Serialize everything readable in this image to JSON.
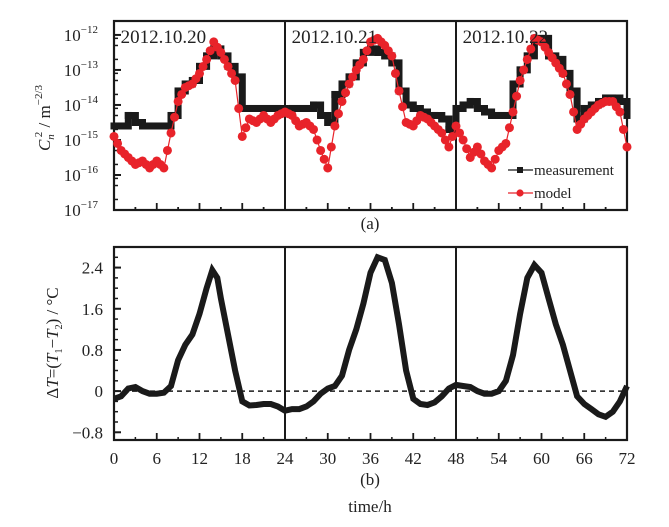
{
  "chart_data": [
    {
      "type": "scatter",
      "panel_label": "(a)",
      "yscale": "log",
      "ylabel": "C_n^2 / m^-2/3",
      "ylabel_parts": {
        "symbol": "C",
        "sub": "n",
        "sup": "2",
        "unit": " / m",
        "unit_sup": "−2/3"
      },
      "ylim": [
        1e-17,
        2.5e-12
      ],
      "xlim": [
        0,
        72
      ],
      "ytick_exponents": [
        -12,
        -13,
        -14,
        -15,
        -16,
        -17
      ],
      "ytick_base": "10",
      "day_dividers": [
        24,
        48
      ],
      "annotations": [
        {
          "text": "2012.10.20",
          "x": 0.5
        },
        {
          "text": "2012.10.21",
          "x": 24.5
        },
        {
          "text": "2012.10.22",
          "x": 48.5
        }
      ],
      "legend": {
        "position": "bottom-right",
        "entries": [
          "measurement",
          "model"
        ]
      },
      "x": [
        0,
        1,
        2,
        3,
        4,
        5,
        6,
        7,
        8,
        9,
        10,
        11,
        12,
        13,
        14,
        15,
        16,
        17,
        18,
        19,
        20,
        21,
        22,
        23,
        24,
        25,
        26,
        27,
        28,
        29,
        30,
        31,
        32,
        33,
        34,
        35,
        36,
        37,
        38,
        39,
        40,
        41,
        42,
        43,
        44,
        45,
        46,
        47,
        48,
        49,
        50,
        51,
        52,
        53,
        54,
        55,
        56,
        57,
        58,
        59,
        60,
        61,
        62,
        63,
        64,
        65,
        66,
        67,
        68,
        69,
        70,
        71,
        72
      ],
      "series": [
        {
          "name": "measurement",
          "color": "#1a1a1a",
          "log10_values": [
            -14.6,
            -14.6,
            -14.3,
            -14.5,
            -14.6,
            -14.6,
            -14.6,
            -14.6,
            -14.3,
            -13.6,
            -13.4,
            -13.3,
            -12.9,
            -12.6,
            -12.4,
            -12.6,
            -12.9,
            -13.2,
            -14.1,
            -14.1,
            -14.1,
            -14.1,
            -14.1,
            -14.1,
            -14.2,
            -14.1,
            -14.1,
            -14.1,
            -14.0,
            -14.3,
            -14.5,
            -13.7,
            -13.4,
            -13.2,
            -12.8,
            -12.5,
            -12.4,
            -12.5,
            -12.6,
            -12.8,
            -13.6,
            -14.0,
            -14.1,
            -14.2,
            -14.3,
            -14.3,
            -14.4,
            -14.7,
            -14.1,
            -14.0,
            -13.9,
            -14.1,
            -14.2,
            -14.3,
            -14.3,
            -14.3,
            -13.4,
            -13.0,
            -12.6,
            -12.1,
            -12.1,
            -12.6,
            -12.7,
            -13.1,
            -13.6,
            -14.4,
            -14.1,
            -14.0,
            -13.9,
            -13.8,
            -13.8,
            -13.9,
            -14.3
          ]
        },
        {
          "name": "model",
          "color": "#e8232a",
          "log10_values": [
            -14.9,
            -15.3,
            -15.5,
            -15.7,
            -15.6,
            -15.8,
            -15.6,
            -15.8,
            -14.8,
            -13.9,
            -13.5,
            -13.4,
            -13.1,
            -12.7,
            -12.2,
            -12.5,
            -12.9,
            -13.3,
            -14.9,
            -14.4,
            -14.5,
            -14.3,
            -14.5,
            -14.3,
            -14.2,
            -14.3,
            -14.6,
            -14.5,
            -14.7,
            -15.3,
            -15.8,
            -14.6,
            -13.9,
            -13.4,
            -13.0,
            -12.7,
            -12.2,
            -12.1,
            -12.3,
            -12.6,
            -13.6,
            -14.5,
            -14.6,
            -14.3,
            -14.4,
            -14.6,
            -14.8,
            -15.2,
            -14.6,
            -15.0,
            -15.5,
            -15.2,
            -15.6,
            -15.8,
            -15.3,
            -15.1,
            -14.2,
            -13.3,
            -12.7,
            -12.1,
            -12.2,
            -12.5,
            -12.8,
            -13.1,
            -13.7,
            -14.7,
            -14.4,
            -14.2,
            -14.0,
            -13.9,
            -13.9,
            -14.2,
            -15.2
          ]
        }
      ]
    },
    {
      "type": "line",
      "panel_label": "(b)",
      "xlabel": "time/h",
      "ylabel": "ΔT=(T1−T2) / °C",
      "ylabel_parts": {
        "delta": "Δ",
        "T": "T",
        "eq": "=(",
        "T1": "T",
        "s1": "1",
        "minus": "−",
        "T2": "T",
        "s2": "2",
        "unit": ") / °C"
      },
      "xlim": [
        0,
        72
      ],
      "ylim": [
        -0.95,
        2.8
      ],
      "xticks": [
        0,
        6,
        12,
        18,
        24,
        30,
        36,
        42,
        48,
        54,
        60,
        66,
        72
      ],
      "yticks": [
        2.4,
        1.6,
        0.8,
        0,
        -0.8
      ],
      "ytick_labels": [
        "2.4",
        "1.6",
        "0.8",
        "0",
        "−0.8"
      ],
      "reference_line": {
        "y": 0,
        "style": "dashed"
      },
      "day_dividers": [
        24,
        48
      ],
      "x": [
        0,
        1,
        2,
        3,
        4,
        5,
        6,
        7,
        8,
        9,
        10,
        11,
        12,
        13,
        13.8,
        14.5,
        15,
        16,
        17,
        18,
        19,
        20,
        21,
        22,
        23,
        24,
        25,
        26,
        27,
        28,
        29,
        30,
        31,
        32,
        33,
        34,
        35,
        36,
        37,
        38,
        39,
        40,
        41,
        42,
        43,
        44,
        45,
        46,
        47,
        48,
        49,
        50,
        51,
        52,
        53,
        54,
        55,
        56,
        57,
        58,
        59,
        60,
        61,
        62,
        63,
        64,
        65,
        66,
        67,
        68,
        69,
        70,
        71,
        72
      ],
      "series": [
        {
          "name": "ΔT",
          "color": "#1a1a1a",
          "values": [
            -0.15,
            -0.1,
            0.05,
            0.08,
            0.0,
            -0.05,
            -0.05,
            -0.03,
            0.1,
            0.6,
            0.9,
            1.1,
            1.5,
            2.0,
            2.35,
            2.2,
            1.8,
            1.1,
            0.4,
            -0.2,
            -0.28,
            -0.27,
            -0.25,
            -0.25,
            -0.3,
            -0.38,
            -0.35,
            -0.35,
            -0.3,
            -0.2,
            -0.05,
            0.05,
            0.1,
            0.3,
            0.8,
            1.2,
            1.7,
            2.3,
            2.6,
            2.55,
            2.1,
            1.3,
            0.4,
            -0.15,
            -0.25,
            -0.27,
            -0.22,
            -0.1,
            0.05,
            0.12,
            0.1,
            0.08,
            0.0,
            -0.05,
            -0.05,
            0.0,
            0.2,
            0.7,
            1.5,
            2.2,
            2.45,
            2.3,
            1.8,
            1.3,
            0.9,
            0.4,
            -0.1,
            -0.25,
            -0.35,
            -0.45,
            -0.5,
            -0.4,
            -0.2,
            0.1
          ]
        }
      ]
    }
  ]
}
